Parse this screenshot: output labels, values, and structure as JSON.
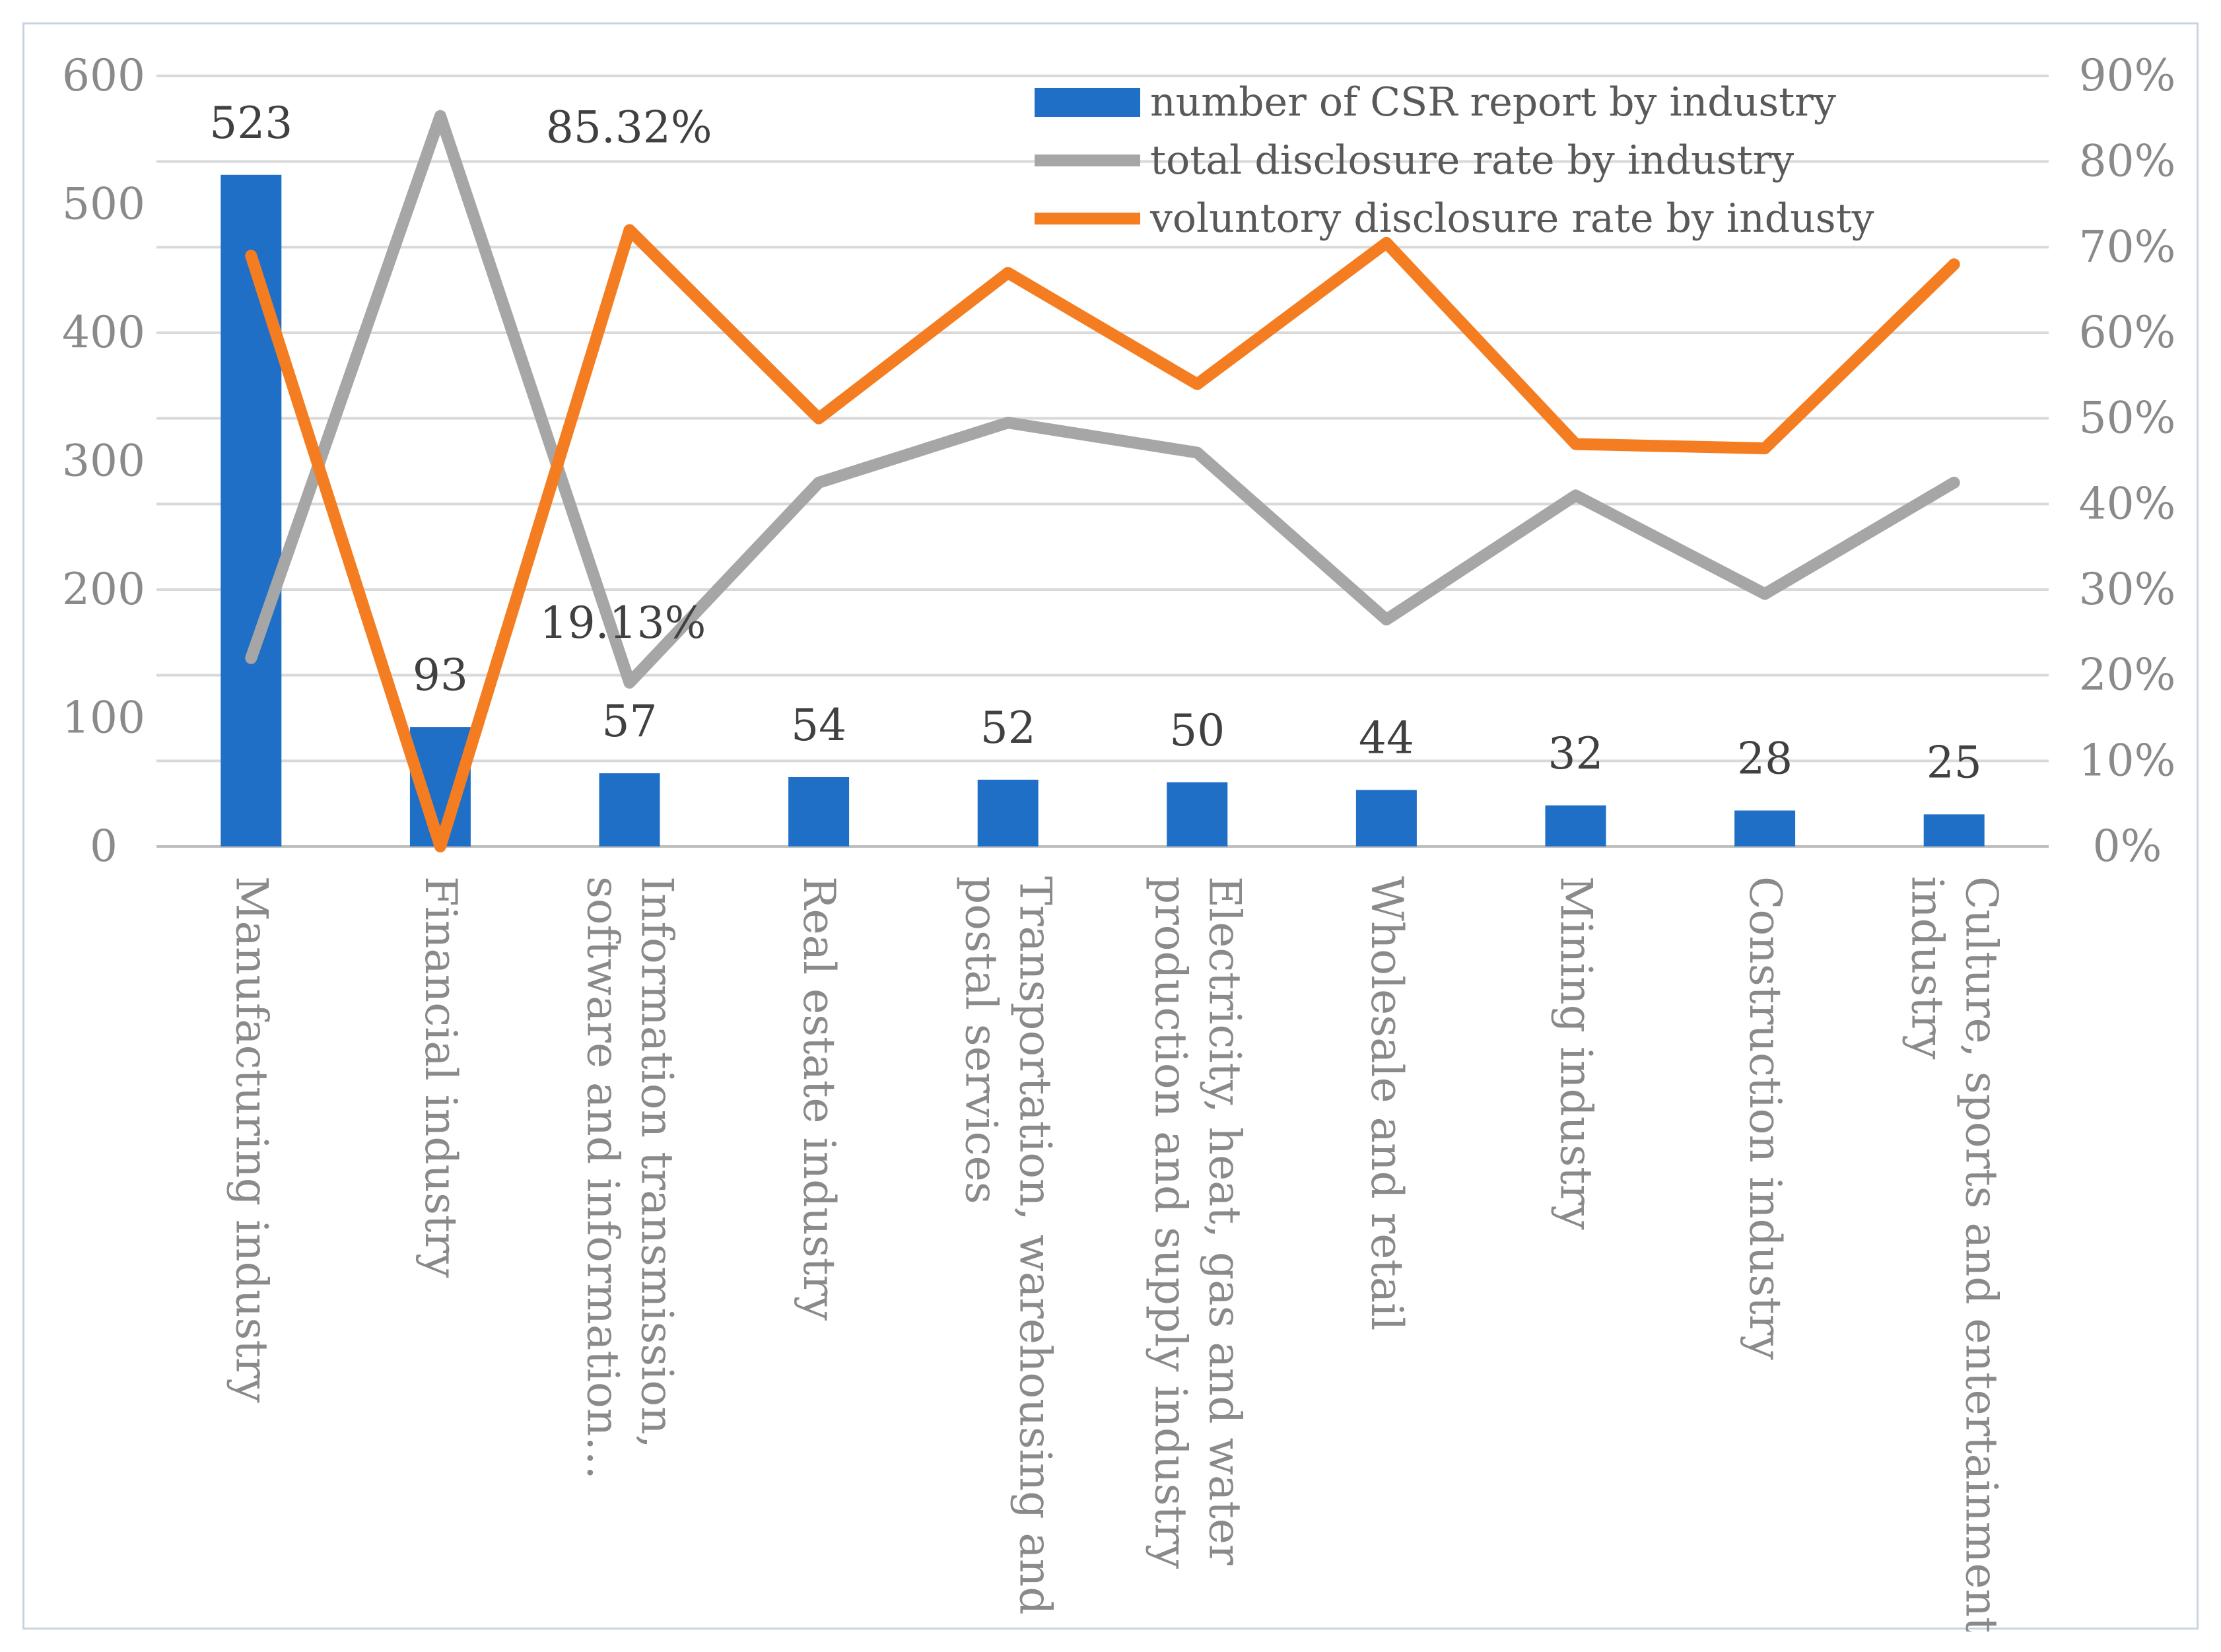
{
  "chart_data": {
    "type": "bar",
    "title": "",
    "xlabel": "",
    "ylabel": "",
    "ylim": [
      0,
      600
    ],
    "y2lim": [
      0,
      0.9
    ],
    "yticks": [
      "0",
      "100",
      "200",
      "300",
      "400",
      "500",
      "600"
    ],
    "y2ticks": [
      "0%",
      "10%",
      "20%",
      "30%",
      "40%",
      "50%",
      "60%",
      "70%",
      "80%",
      "90%"
    ],
    "grid": true,
    "legend_position": "top-right",
    "categories": [
      [
        "Manufacturing industry"
      ],
      [
        "Financial industry"
      ],
      [
        "Information transmission,",
        "software and information…"
      ],
      [
        "Real estate industry"
      ],
      [
        "Transportation, warehousing and",
        "postal services"
      ],
      [
        "Electricity, heat, gas and water",
        "production and supply industry"
      ],
      [
        "Wholesale and retail"
      ],
      [
        "Mining industry"
      ],
      [
        "Construction industry"
      ],
      [
        "Culture, sports and entertainment",
        "industry"
      ]
    ],
    "series": [
      {
        "name": "number of CSR report by industry",
        "type": "bar",
        "axis": "left",
        "color": "#1f6fc6",
        "values": [
          523,
          93,
          57,
          54,
          52,
          50,
          44,
          32,
          28,
          25
        ],
        "data_labels": [
          "523",
          "93",
          "57",
          "54",
          "52",
          "50",
          "44",
          "32",
          "28",
          "25"
        ]
      },
      {
        "name": "total disclosure rate by industry",
        "type": "line",
        "axis": "right",
        "color": "#a6a6a6",
        "values": [
          0.22,
          0.8532,
          0.1913,
          0.425,
          0.495,
          0.46,
          0.265,
          0.41,
          0.295,
          0.425
        ],
        "data_labels": [
          {
            "index": 1,
            "text": "85.32%"
          },
          {
            "index": 2,
            "text": "19.13%"
          }
        ]
      },
      {
        "name": "voluntory disclosure rate by industy",
        "type": "line",
        "axis": "right",
        "color": "#f47d21",
        "values": [
          0.69,
          0.0,
          0.72,
          0.5,
          0.67,
          0.54,
          0.705,
          0.47,
          0.465,
          0.68
        ]
      }
    ]
  }
}
